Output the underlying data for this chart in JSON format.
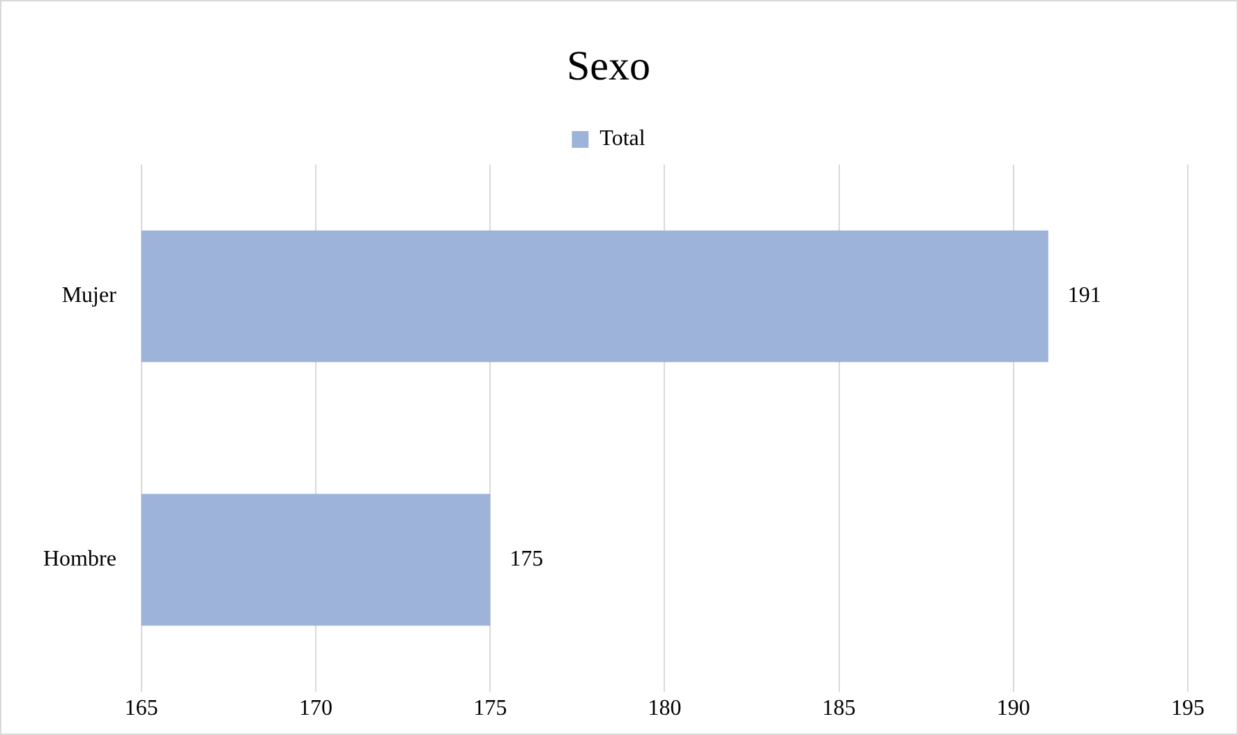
{
  "chart_data": {
    "type": "bar",
    "title": "Sexo",
    "orientation": "horizontal",
    "categories": [
      "Mujer",
      "Hombre"
    ],
    "series": [
      {
        "name": "Total",
        "color": "#9db3da",
        "values": [
          191,
          175
        ]
      }
    ],
    "xlim": [
      165,
      195
    ],
    "xticks": [
      165,
      170,
      175,
      180,
      185,
      190,
      195
    ],
    "grid": "x",
    "legend": "top",
    "data_labels": true
  }
}
